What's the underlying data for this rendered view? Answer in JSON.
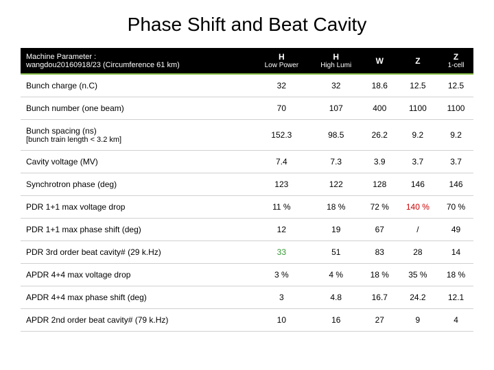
{
  "title": "Phase Shift and Beat Cavity",
  "header": {
    "param_label_line1": "Machine Parameter :",
    "param_label_line2": "wangdou20160918/23  (Circumference 61 km)",
    "cols": [
      {
        "main": "H",
        "sub": "Low Power"
      },
      {
        "main": "H",
        "sub": "High Lumi"
      },
      {
        "main": "W",
        "sub": ""
      },
      {
        "main": "Z",
        "sub": ""
      },
      {
        "main": "Z",
        "sub": "1-cell"
      }
    ]
  },
  "rows": [
    {
      "label": "Bunch charge (n.C)",
      "v": [
        "32",
        "32",
        "18.6",
        "12.5",
        "12.5"
      ],
      "c": [
        "",
        "",
        "",
        "",
        ""
      ]
    },
    {
      "label": "Bunch number (one beam)",
      "v": [
        "70",
        "107",
        "400",
        "1100",
        "1100"
      ],
      "c": [
        "",
        "",
        "",
        "",
        ""
      ]
    },
    {
      "label": "Bunch spacing (ns)",
      "sub": "[bunch train length < 3.2 km]",
      "v": [
        "152.3",
        "98.5",
        "26.2",
        "9.2",
        "9.2"
      ],
      "c": [
        "",
        "",
        "",
        "",
        ""
      ]
    },
    {
      "label": "Cavity voltage (MV)",
      "v": [
        "7.4",
        "7.3",
        "3.9",
        "3.7",
        "3.7"
      ],
      "c": [
        "",
        "",
        "",
        "",
        ""
      ]
    },
    {
      "label": "Synchrotron phase (deg)",
      "v": [
        "123",
        "122",
        "128",
        "146",
        "146"
      ],
      "c": [
        "",
        "",
        "",
        "",
        ""
      ]
    },
    {
      "label": "PDR 1+1 max voltage drop",
      "v": [
        "11 %",
        "18 %",
        "72 %",
        "140 %",
        "70 %"
      ],
      "c": [
        "",
        "",
        "",
        "highlight-red",
        ""
      ]
    },
    {
      "label": "PDR 1+1 max phase shift (deg)",
      "v": [
        "12",
        "19",
        "67",
        "/",
        "49"
      ],
      "c": [
        "",
        "",
        "",
        "",
        ""
      ]
    },
    {
      "label": "PDR 3rd order beat cavity# (29 k.Hz)",
      "v": [
        "33",
        "51",
        "83",
        "28",
        "14"
      ],
      "c": [
        "highlight-green",
        "",
        "",
        "",
        ""
      ]
    },
    {
      "label": "APDR 4+4 max voltage drop",
      "v": [
        "3 %",
        "4 %",
        "18 %",
        "35 %",
        "18 %"
      ],
      "c": [
        "",
        "",
        "",
        "",
        ""
      ]
    },
    {
      "label": "APDR 4+4 max phase shift (deg)",
      "v": [
        "3",
        "4.8",
        "16.7",
        "24.2",
        "12.1"
      ],
      "c": [
        "",
        "",
        "",
        "",
        ""
      ]
    },
    {
      "label": "APDR 2nd order beat cavity# (79 k.Hz)",
      "v": [
        "10",
        "16",
        "27",
        "9",
        "4"
      ],
      "c": [
        "",
        "",
        "",
        "",
        ""
      ]
    }
  ],
  "styling": {
    "header_bg": "#000000",
    "header_text": "#ffffff",
    "accent_border": "#8bc34a",
    "row_border": "#d0d0d0",
    "title_fontsize": 28,
    "table_fontsize": 12,
    "highlight_red": "#cc0000",
    "highlight_green": "#339933"
  }
}
